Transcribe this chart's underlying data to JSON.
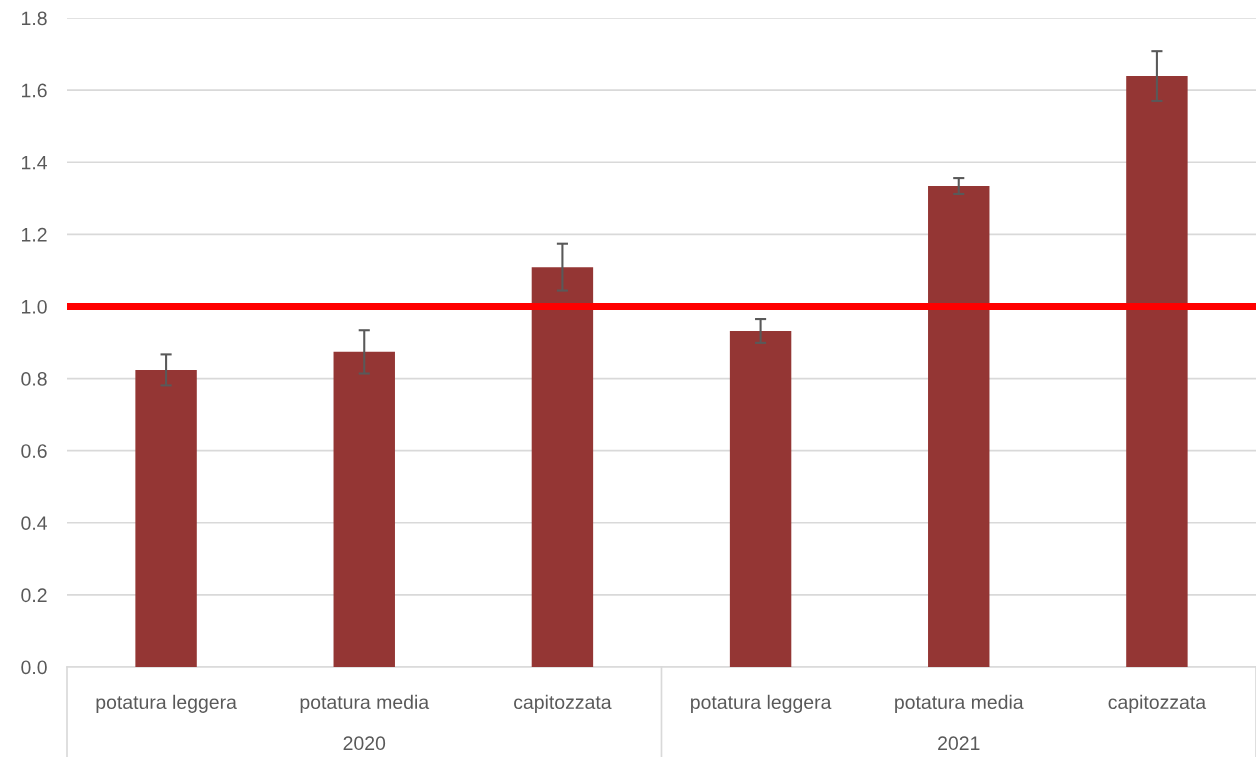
{
  "chart_data": {
    "type": "bar",
    "categories": [
      "potatura leggera",
      "potatura media",
      "capitozzata",
      "potatura leggera",
      "potatura media",
      "capitozzata"
    ],
    "values": [
      0.824,
      0.874,
      1.109,
      0.932,
      1.334,
      1.639
    ],
    "errors": [
      0.043,
      0.06,
      0.065,
      0.033,
      0.022,
      0.069
    ],
    "color": "#943634",
    "ylim": [
      0,
      1.8
    ],
    "yticks": [
      {
        "value": 0,
        "label": "0.0"
      },
      0.2,
      0.4,
      0.6,
      0.8,
      {
        "value": 1,
        "label": "1.0"
      },
      1.2,
      1.4,
      1.6,
      1.8
    ],
    "grid": "y",
    "ref_lines": [
      {
        "axis": "y",
        "value": 1,
        "color": "#ff0000"
      }
    ],
    "annotations": [
      "2020",
      "2021"
    ]
  }
}
